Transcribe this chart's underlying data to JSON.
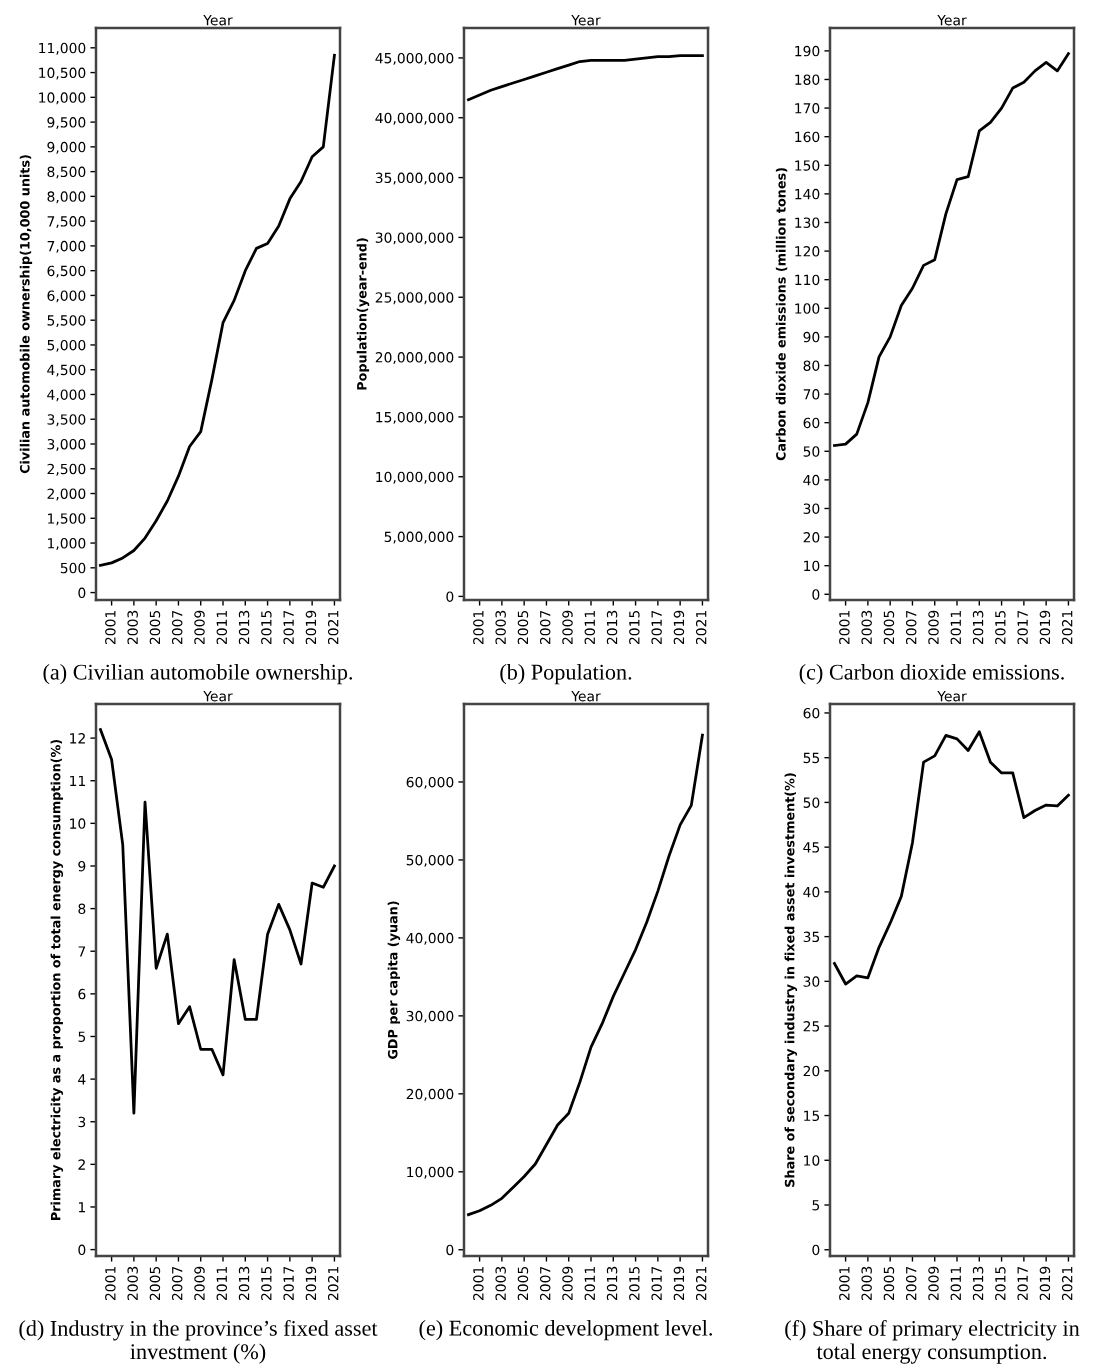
{
  "chart_data": [
    {
      "type": "line",
      "title": "(a) Civilian automobile ownership.",
      "xlabel": "Year",
      "ylabel": "Civilian automobile ownership(10,000 units)",
      "x": [
        2000,
        2001,
        2002,
        2003,
        2004,
        2005,
        2006,
        2007,
        2008,
        2009,
        2010,
        2011,
        2012,
        2013,
        2014,
        2015,
        2016,
        2017,
        2018,
        2019,
        2020,
        2021
      ],
      "series": [
        {
          "color": "#000000",
          "values": [
            550,
            600,
            700,
            850,
            1100,
            1450,
            1850,
            2350,
            2950,
            3250,
            4300,
            5450,
            5900,
            6500,
            6950,
            7050,
            7400,
            7950,
            8300,
            8800,
            9000,
            10850
          ]
        }
      ],
      "xlim": [
        1999.6,
        2021.5
      ],
      "xticks": [
        2001,
        2003,
        2005,
        2007,
        2009,
        2011,
        2013,
        2015,
        2017,
        2019,
        2021
      ],
      "ylim": [
        -150,
        11400
      ],
      "yticks": [
        0,
        500,
        {
          "value": 1000,
          "label": "1,000"
        },
        {
          "value": 1500,
          "label": "1,500"
        },
        {
          "value": 2000,
          "label": "2,000"
        },
        {
          "value": 2500,
          "label": "2,500"
        },
        {
          "value": 3000,
          "label": "3,000"
        },
        {
          "value": 3500,
          "label": "3,500"
        },
        {
          "value": 4000,
          "label": "4,000"
        },
        {
          "value": 4500,
          "label": "4,500"
        },
        {
          "value": 5000,
          "label": "5,000"
        },
        {
          "value": 5500,
          "label": "5,500"
        },
        {
          "value": 6000,
          "label": "6,000"
        },
        {
          "value": 6500,
          "label": "6,500"
        },
        {
          "value": 7000,
          "label": "7,000"
        },
        {
          "value": 7500,
          "label": "7,500"
        },
        {
          "value": 8000,
          "label": "8,000"
        },
        {
          "value": 8500,
          "label": "8,500"
        },
        {
          "value": 9000,
          "label": "9,000"
        },
        {
          "value": 9500,
          "label": "9,500"
        },
        {
          "value": 10000,
          "label": "10,000"
        },
        {
          "value": 10500,
          "label": "10,500"
        },
        {
          "value": 11000,
          "label": "11,000"
        }
      ],
      "grid": false
    },
    {
      "type": "line",
      "title": "(b) Population.",
      "xlabel": "Year",
      "ylabel": "Population(year-end)",
      "x": [
        2000,
        2001,
        2002,
        2003,
        2004,
        2005,
        2006,
        2007,
        2008,
        2009,
        2010,
        2011,
        2012,
        2013,
        2014,
        2015,
        2016,
        2017,
        2018,
        2019,
        2020,
        2021
      ],
      "series": [
        {
          "color": "#000000",
          "values": [
            41500000,
            41900000,
            42300000,
            42600000,
            42900000,
            43200000,
            43500000,
            43800000,
            44100000,
            44400000,
            44700000,
            44800000,
            44800000,
            44800000,
            44800000,
            44900000,
            45000000,
            45100000,
            45100000,
            45200000,
            45200000,
            45200000
          ]
        }
      ],
      "xlim": [
        1999.6,
        2021.5
      ],
      "xticks": [
        2001,
        2003,
        2005,
        2007,
        2009,
        2011,
        2013,
        2015,
        2017,
        2019,
        2021
      ],
      "ylim": [
        -300000,
        47500000
      ],
      "yticks": [
        0,
        {
          "value": 5000000,
          "label": "5,000,000"
        },
        {
          "value": 10000000,
          "label": "10,000,000"
        },
        {
          "value": 15000000,
          "label": "15,000,000"
        },
        {
          "value": 20000000,
          "label": "20,000,000"
        },
        {
          "value": 25000000,
          "label": "25,000,000"
        },
        {
          "value": 30000000,
          "label": "30,000,000"
        },
        {
          "value": 35000000,
          "label": "35,000,000"
        },
        {
          "value": 40000000,
          "label": "40,000,000"
        },
        {
          "value": 45000000,
          "label": "45,000,000"
        }
      ],
      "grid": false
    },
    {
      "type": "line",
      "title": "(c) Carbon dioxide emissions.",
      "xlabel": "Year",
      "ylabel": "Carbon dioxide emissions (million tones)",
      "x": [
        2000,
        2001,
        2002,
        2003,
        2004,
        2005,
        2006,
        2007,
        2008,
        2009,
        2010,
        2011,
        2012,
        2013,
        2014,
        2015,
        2016,
        2017,
        2018,
        2019,
        2020,
        2021
      ],
      "series": [
        {
          "color": "#000000",
          "values": [
            52,
            52.5,
            56,
            67,
            83,
            90,
            101,
            107,
            115,
            117,
            133,
            145,
            146,
            162,
            165,
            170,
            177,
            179,
            183,
            186,
            183,
            189
          ]
        }
      ],
      "xlim": [
        1999.6,
        2021.5
      ],
      "xticks": [
        2001,
        2003,
        2005,
        2007,
        2009,
        2011,
        2013,
        2015,
        2017,
        2019,
        2021
      ],
      "ylim": [
        -2,
        198
      ],
      "yticks": [
        0,
        10,
        20,
        30,
        40,
        50,
        60,
        70,
        80,
        90,
        100,
        110,
        120,
        130,
        140,
        150,
        160,
        170,
        180,
        190
      ],
      "grid": false
    },
    {
      "type": "line",
      "title": "(d) Industry in the province’s fixed asset investment (%)",
      "xlabel": "Year",
      "ylabel": "Primary electricity as a proportion of total energy consumption(%)",
      "x": [
        2000,
        2001,
        2002,
        2003,
        2004,
        2005,
        2006,
        2007,
        2008,
        2009,
        2010,
        2011,
        2012,
        2013,
        2014,
        2015,
        2016,
        2017,
        2018,
        2019,
        2020,
        2021
      ],
      "series": [
        {
          "color": "#000000",
          "values": [
            12.2,
            11.5,
            9.5,
            3.2,
            10.5,
            6.6,
            7.4,
            5.3,
            5.7,
            4.7,
            4.7,
            4.1,
            6.8,
            5.4,
            5.4,
            7.4,
            8.1,
            7.5,
            6.7,
            8.6,
            8.5,
            9.0
          ]
        }
      ],
      "xlim": [
        1999.6,
        2021.5
      ],
      "xticks": [
        2001,
        2003,
        2005,
        2007,
        2009,
        2011,
        2013,
        2015,
        2017,
        2019,
        2021
      ],
      "ylim": [
        -0.15,
        12.8
      ],
      "yticks": [
        0,
        1,
        2,
        3,
        4,
        5,
        6,
        7,
        8,
        9,
        10,
        11,
        12
      ],
      "grid": false
    },
    {
      "type": "line",
      "title": "(e) Economic development level.",
      "xlabel": "Year",
      "ylabel": "GDP per capita (yuan)",
      "x": [
        2000,
        2001,
        2002,
        2003,
        2004,
        2005,
        2006,
        2007,
        2008,
        2009,
        2010,
        2011,
        2012,
        2013,
        2014,
        2015,
        2016,
        2017,
        2018,
        2019,
        2020,
        2021
      ],
      "series": [
        {
          "color": "#000000",
          "values": [
            4500,
            5000,
            5700,
            6600,
            8000,
            9400,
            11000,
            13500,
            16000,
            17500,
            21500,
            26000,
            29000,
            32500,
            35500,
            38500,
            42000,
            46000,
            50500,
            54500,
            57000,
            66000
          ]
        }
      ],
      "xlim": [
        1999.6,
        2021.5
      ],
      "xticks": [
        2001,
        2003,
        2005,
        2007,
        2009,
        2011,
        2013,
        2015,
        2017,
        2019,
        2021
      ],
      "ylim": [
        -800,
        70000
      ],
      "yticks": [
        0,
        {
          "value": 10000,
          "label": "10,000"
        },
        {
          "value": 20000,
          "label": "20,000"
        },
        {
          "value": 30000,
          "label": "30,000"
        },
        {
          "value": 40000,
          "label": "40,000"
        },
        {
          "value": 50000,
          "label": "50,000"
        },
        {
          "value": 60000,
          "label": "60,000"
        }
      ],
      "grid": false
    },
    {
      "type": "line",
      "title": "(f) Share of primary electricity in total energy consumption.",
      "xlabel": "Year",
      "ylabel": "Share of secondary industry in fixed asset investment(%)",
      "x": [
        2000,
        2001,
        2002,
        2003,
        2004,
        2005,
        2006,
        2007,
        2008,
        2009,
        2010,
        2011,
        2012,
        2013,
        2014,
        2015,
        2016,
        2017,
        2018,
        2019,
        2020,
        2021
      ],
      "series": [
        {
          "color": "#000000",
          "values": [
            32,
            29.7,
            30.6,
            30.4,
            33.8,
            36.5,
            39.5,
            45.5,
            54.5,
            55.2,
            57.5,
            57.1,
            55.8,
            57.9,
            54.5,
            53.3,
            53.3,
            48.3,
            49.1,
            49.7,
            49.6,
            50.8
          ]
        }
      ],
      "xlim": [
        1999.6,
        2021.5
      ],
      "xticks": [
        2001,
        2003,
        2005,
        2007,
        2009,
        2011,
        2013,
        2015,
        2017,
        2019,
        2021
      ],
      "ylim": [
        -0.7,
        61
      ],
      "yticks": [
        0,
        5,
        10,
        15,
        20,
        25,
        30,
        35,
        40,
        45,
        50,
        55,
        60
      ],
      "grid": false
    }
  ]
}
